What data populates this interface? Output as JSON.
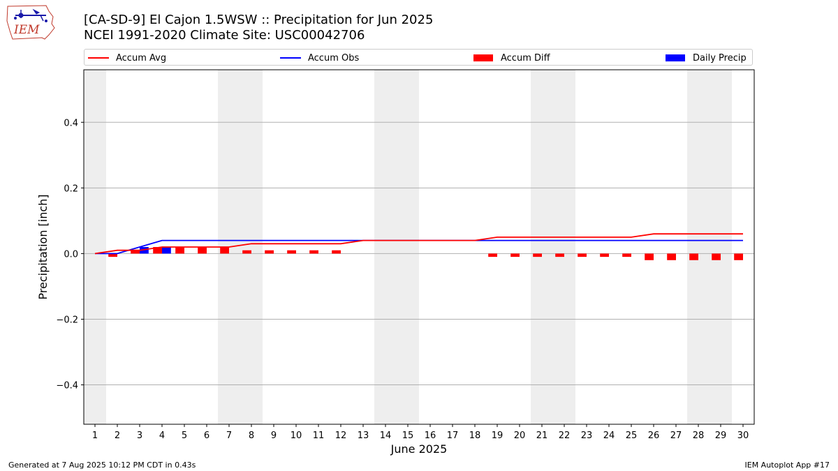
{
  "header": {
    "title_line1": "[CA-SD-9] El Cajon 1.5WSW :: Precipitation for Jun 2025",
    "title_line2": "NCEI 1991-2020 Climate Site: USC00042706",
    "logo_text": "IEM"
  },
  "legend": {
    "accum_avg": "Accum Avg",
    "accum_obs": "Accum Obs",
    "accum_diff": "Accum Diff",
    "daily_precip": "Daily Precip"
  },
  "colors": {
    "accum_avg": "#ff0000",
    "accum_obs": "#0000ff",
    "accum_diff": "#ff0000",
    "daily_precip": "#0000ff",
    "weekend_shade": "#eeeeee",
    "grid": "#b0b0b0"
  },
  "footer": {
    "left": "Generated at 7 Aug 2025 10:12 PM CDT in 0.43s",
    "right": "IEM Autoplot App #17"
  },
  "chart_data": {
    "type": "bar",
    "title": "[CA-SD-9] El Cajon 1.5WSW :: Precipitation for Jun 2025",
    "subtitle": "NCEI 1991-2020 Climate Site: USC00042706",
    "xlabel": "June 2025",
    "ylabel": "Precipitation [inch]",
    "x": [
      1,
      2,
      3,
      4,
      5,
      6,
      7,
      8,
      9,
      10,
      11,
      12,
      13,
      14,
      15,
      16,
      17,
      18,
      19,
      20,
      21,
      22,
      23,
      24,
      25,
      26,
      27,
      28,
      29,
      30
    ],
    "xlim": [
      0.5,
      30.5
    ],
    "ylim": [
      -0.52,
      0.56
    ],
    "yticks": [
      -0.4,
      -0.2,
      0.0,
      0.2,
      0.4
    ],
    "ytick_labels": [
      "−0.4",
      "−0.2",
      "0.0",
      "0.2",
      "0.4"
    ],
    "grid": "horizontal",
    "legend_position": "top",
    "weekend_days": [
      1,
      7,
      8,
      14,
      15,
      21,
      22,
      28,
      29
    ],
    "series": [
      {
        "name": "Accum Avg",
        "kind": "line",
        "values": [
          0.0,
          0.01,
          0.01,
          0.02,
          0.02,
          0.02,
          0.02,
          0.03,
          0.03,
          0.03,
          0.03,
          0.03,
          0.04,
          0.04,
          0.04,
          0.04,
          0.04,
          0.04,
          0.05,
          0.05,
          0.05,
          0.05,
          0.05,
          0.05,
          0.05,
          0.06,
          0.06,
          0.06,
          0.06,
          0.06
        ]
      },
      {
        "name": "Accum Obs",
        "kind": "line",
        "values": [
          0.0,
          0.0,
          0.02,
          0.04,
          0.04,
          0.04,
          0.04,
          0.04,
          0.04,
          0.04,
          0.04,
          0.04,
          0.04,
          0.04,
          0.04,
          0.04,
          0.04,
          0.04,
          0.04,
          0.04,
          0.04,
          0.04,
          0.04,
          0.04,
          0.04,
          0.04,
          0.04,
          0.04,
          0.04,
          0.04
        ]
      },
      {
        "name": "Accum Diff",
        "kind": "bar",
        "values": [
          0.0,
          -0.01,
          0.01,
          0.02,
          0.02,
          0.02,
          0.02,
          0.01,
          0.01,
          0.01,
          0.01,
          0.01,
          0.0,
          0.0,
          0.0,
          0.0,
          0.0,
          0.0,
          -0.01,
          -0.01,
          -0.01,
          -0.01,
          -0.01,
          -0.01,
          -0.01,
          -0.02,
          -0.02,
          -0.02,
          -0.02,
          -0.02
        ]
      },
      {
        "name": "Daily Precip",
        "kind": "bar",
        "values": [
          0,
          0,
          0.02,
          0.02,
          0,
          0,
          0,
          0,
          0,
          0,
          0,
          0,
          0,
          0,
          0,
          0,
          0,
          0,
          0,
          0,
          0,
          0,
          0,
          0,
          0,
          0,
          0,
          0,
          0,
          0
        ]
      }
    ]
  }
}
